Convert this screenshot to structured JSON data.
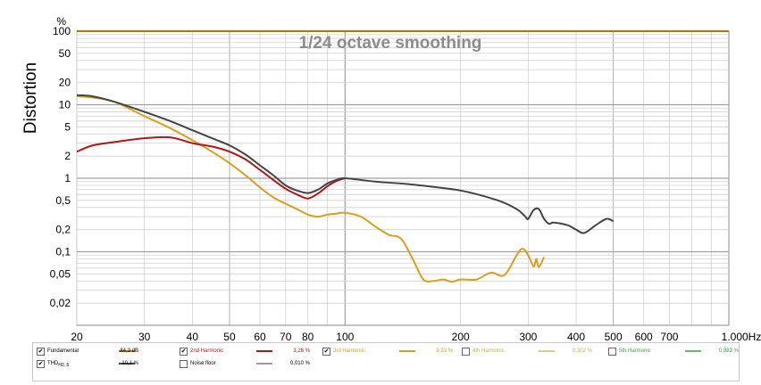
{
  "chart_data": {
    "type": "line",
    "title": "1/24 octave smoothing",
    "ylabel": "Distortion",
    "yunit": "%",
    "xunit": "Hz",
    "xscale": "log",
    "yscale": "log",
    "xlim": [
      20,
      1000
    ],
    "ylim": [
      0.01,
      100
    ],
    "grid": true,
    "x_ticks": [
      {
        "v": 20,
        "label": "20"
      },
      {
        "v": 30,
        "label": "30"
      },
      {
        "v": 40,
        "label": "40"
      },
      {
        "v": 50,
        "label": "50"
      },
      {
        "v": 60,
        "label": "60"
      },
      {
        "v": 70,
        "label": "70"
      },
      {
        "v": 80,
        "label": "80"
      },
      {
        "v": 100,
        "label": "100"
      },
      {
        "v": 200,
        "label": "200"
      },
      {
        "v": 300,
        "label": "300"
      },
      {
        "v": 400,
        "label": "400"
      },
      {
        "v": 500,
        "label": "500"
      },
      {
        "v": 600,
        "label": "600"
      },
      {
        "v": 700,
        "label": "700"
      },
      {
        "v": 1000,
        "label": "1.000Hz"
      }
    ],
    "y_ticks": [
      {
        "v": 100,
        "label": "100"
      },
      {
        "v": 50,
        "label": "50"
      },
      {
        "v": 20,
        "label": "20"
      },
      {
        "v": 10,
        "label": "10"
      },
      {
        "v": 5,
        "label": "5"
      },
      {
        "v": 2,
        "label": "2"
      },
      {
        "v": 1,
        "label": "1"
      },
      {
        "v": 0.5,
        "label": "0,5"
      },
      {
        "v": 0.2,
        "label": "0,2"
      },
      {
        "v": 0.1,
        "label": "0,1"
      },
      {
        "v": 0.05,
        "label": "0,05"
      },
      {
        "v": 0.02,
        "label": "0,02"
      }
    ],
    "series": [
      {
        "name": "Fundamental",
        "color": "#b07800",
        "x": [
          20,
          1000
        ],
        "y": [
          100,
          100
        ]
      },
      {
        "name": "THD",
        "color": "#444444",
        "x": [
          20,
          22,
          25,
          30,
          35,
          40,
          45,
          50,
          55,
          60,
          65,
          70,
          75,
          80,
          85,
          90,
          95,
          100,
          120,
          150,
          200,
          250,
          280,
          295,
          300,
          310,
          320,
          330,
          340,
          350,
          380,
          400,
          420,
          450,
          480,
          500
        ],
        "y": [
          13.5,
          13,
          11,
          8,
          6,
          4.5,
          3.5,
          2.8,
          2.1,
          1.5,
          1.1,
          0.8,
          0.68,
          0.63,
          0.7,
          0.85,
          0.95,
          1.0,
          0.9,
          0.82,
          0.68,
          0.5,
          0.38,
          0.3,
          0.28,
          0.37,
          0.38,
          0.28,
          0.24,
          0.25,
          0.23,
          0.2,
          0.18,
          0.23,
          0.28,
          0.26
        ]
      },
      {
        "name": "2nd Harmonic",
        "color": "#b01818",
        "x": [
          20,
          22,
          25,
          30,
          35,
          40,
          45,
          50,
          55,
          60,
          65,
          70,
          75,
          80,
          85,
          90,
          95,
          100
        ],
        "y": [
          2.3,
          2.8,
          3.1,
          3.5,
          3.6,
          3.0,
          2.7,
          2.3,
          1.8,
          1.3,
          0.95,
          0.72,
          0.6,
          0.53,
          0.62,
          0.78,
          0.92,
          1.0
        ]
      },
      {
        "name": "3rd Harmonic",
        "color": "#d9a020",
        "x": [
          20,
          22,
          25,
          30,
          35,
          40,
          45,
          50,
          55,
          60,
          65,
          70,
          75,
          80,
          85,
          90,
          95,
          100,
          110,
          120,
          130,
          140,
          150,
          160,
          170,
          180,
          190,
          200,
          220,
          240,
          260,
          280,
          290,
          300,
          310,
          315,
          320,
          330
        ],
        "y": [
          13,
          12.5,
          11,
          7,
          4.8,
          3.3,
          2.3,
          1.6,
          1.1,
          0.75,
          0.55,
          0.45,
          0.38,
          0.32,
          0.3,
          0.32,
          0.33,
          0.34,
          0.3,
          0.22,
          0.17,
          0.15,
          0.08,
          0.042,
          0.04,
          0.042,
          0.039,
          0.042,
          0.042,
          0.052,
          0.048,
          0.09,
          0.11,
          0.09,
          0.063,
          0.08,
          0.062,
          0.085
        ]
      }
    ],
    "legend": {
      "placement": "bottom",
      "items": [
        {
          "name": "Fundamental",
          "value": "84,3 dB",
          "checked": true,
          "color": "#b07800",
          "text_color": "#000000"
        },
        {
          "name": "2nd Harmonic",
          "value": "3,26 %",
          "checked": true,
          "color": "#b01818",
          "text_color": "#b01818"
        },
        {
          "name": "3rd Harmonic",
          "value": "9,53 %",
          "checked": true,
          "color": "#d9a020",
          "text_color": "#d9a020"
        },
        {
          "name": "4th Harmonic",
          "value": "0,302 %",
          "checked": false,
          "color": "#d8d080",
          "text_color": "#c8b040"
        },
        {
          "name": "5th Harmonic",
          "value": "0,883 %",
          "checked": false,
          "color": "#60c060",
          "text_color": "#40a040"
        },
        {
          "name": "THD",
          "sub": "H2..5",
          "value": "10,1 %",
          "checked": true,
          "color": "#444444",
          "text_color": "#000000"
        },
        {
          "name": "Noise floor",
          "value": "0,010 %",
          "checked": false,
          "color": "#9a9a9a",
          "text_color": "#000000"
        }
      ]
    }
  }
}
